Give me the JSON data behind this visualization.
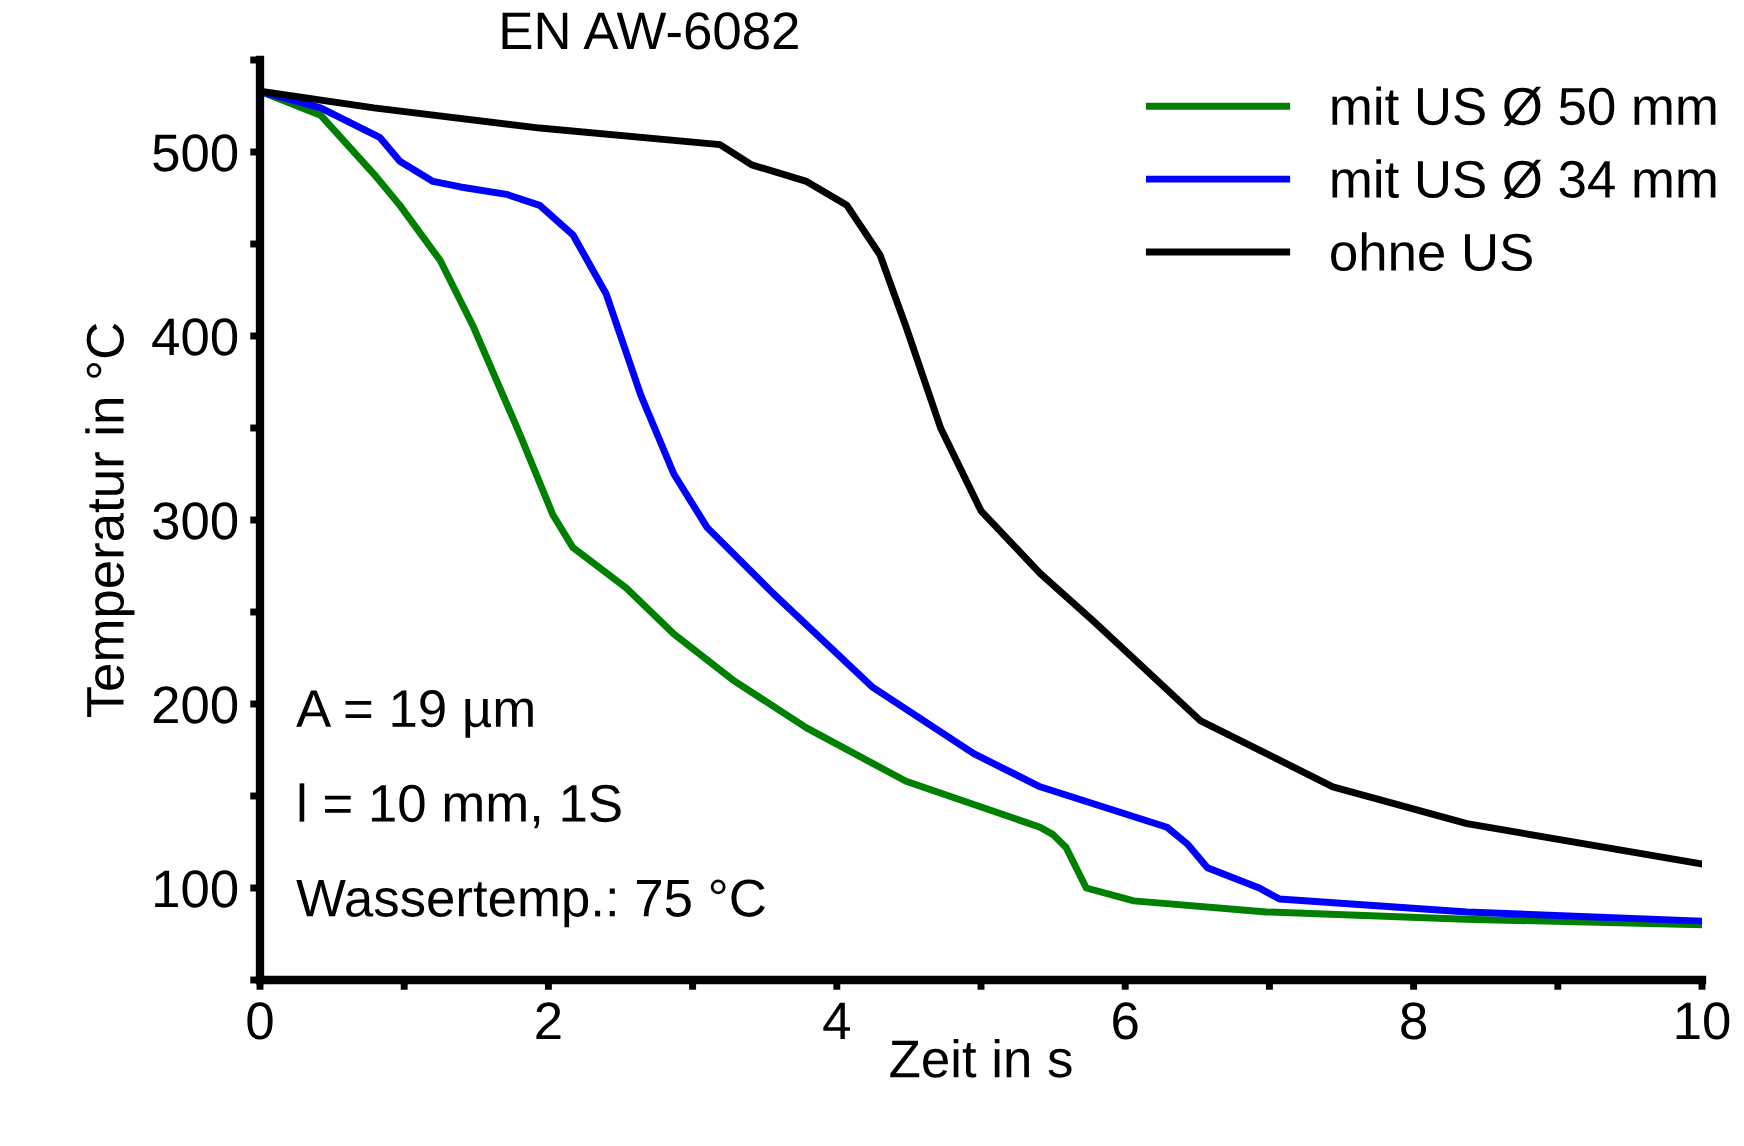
{
  "chart_data": {
    "type": "line",
    "title": "EN AW-6082",
    "xlabel": "Zeit in s",
    "ylabel": "Temperatur in °C",
    "annotations": [
      "A = 19 µm",
      "l = 10 mm, 1S",
      "Wassertemp.: 75 °C"
    ],
    "xlim": [
      0,
      10
    ],
    "ylim": [
      50,
      550
    ],
    "xticks": [
      0,
      {
        "value": 1,
        "label": null
      },
      2,
      {
        "value": 3,
        "label": null
      },
      4,
      {
        "value": 5,
        "label": null
      },
      6,
      {
        "value": 7,
        "label": null
      },
      8,
      {
        "value": 9,
        "label": null
      },
      10
    ],
    "yticks": [
      {
        "value": 50,
        "label": null
      },
      100,
      {
        "value": 150,
        "label": null
      },
      200,
      {
        "value": 250,
        "label": null
      },
      300,
      {
        "value": 350,
        "label": null
      },
      400,
      {
        "value": 450,
        "label": null
      },
      500,
      {
        "value": 550,
        "label": null
      }
    ],
    "grid": false,
    "legend": "top right",
    "line_style": "solid",
    "marker": "none",
    "series": [
      {
        "name": "mit US Ø 50 mm",
        "color": "#008000",
        "x": [
          0,
          0.42,
          0.79,
          0.97,
          1.25,
          1.48,
          1.8,
          2.03,
          2.17,
          2.54,
          2.87,
          3.28,
          3.79,
          4.48,
          5.41,
          5.5,
          5.59,
          5.73,
          6.06,
          6.98,
          8.36,
          10
        ],
        "values": [
          533,
          520,
          488,
          471,
          441,
          405,
          347,
          303,
          285,
          263,
          238,
          213,
          187,
          158,
          133,
          129,
          122,
          100,
          93,
          87,
          83,
          80
        ]
      },
      {
        "name": "mit US Ø 34 mm",
        "color": "#0000ff",
        "x": [
          0,
          0.42,
          0.83,
          0.97,
          1.2,
          1.39,
          1.71,
          1.94,
          2.17,
          2.4,
          2.64,
          2.87,
          3.1,
          3.56,
          4.25,
          4.95,
          5.41,
          6.29,
          6.43,
          6.57,
          6.93,
          7.07,
          8.37,
          10
        ],
        "values": [
          533,
          524,
          508,
          495,
          484,
          481,
          477,
          471,
          455,
          423,
          368,
          325,
          296,
          260,
          209,
          173,
          155,
          133,
          124,
          111,
          100,
          94,
          87,
          82
        ]
      },
      {
        "name": "ohne US",
        "color": "#000000",
        "x": [
          0,
          0.79,
          1.94,
          3.19,
          3.41,
          3.79,
          4.07,
          4.3,
          4.48,
          4.72,
          5.0,
          5.41,
          5.78,
          6.52,
          7.44,
          8.37,
          10
        ],
        "values": [
          533,
          524,
          513,
          504,
          493,
          484,
          471,
          444,
          405,
          350,
          305,
          271,
          245,
          191,
          155,
          135,
          113
        ]
      }
    ]
  }
}
